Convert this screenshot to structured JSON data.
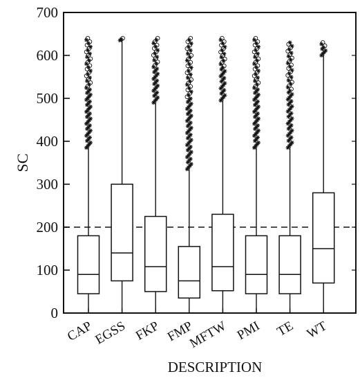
{
  "chart_data": {
    "type": "box",
    "title": "",
    "xlabel": "DESCRIPTION",
    "ylabel": "SC",
    "ylim": [
      0,
      700
    ],
    "yticks": [
      0,
      100,
      200,
      300,
      400,
      500,
      600,
      700
    ],
    "categories": [
      "CAP",
      "EGSS",
      "FKP",
      "FMP",
      "MFTW",
      "PMI",
      "TE",
      "WT"
    ],
    "reference_line": {
      "y": 200,
      "style": "dashed"
    },
    "grid": false,
    "boxes": [
      {
        "category": "CAP",
        "whisker_low": 0,
        "q1": 45,
        "median": 90,
        "q3": 180,
        "whisker_high": 385,
        "outliers_from": 385,
        "outliers_to": 640
      },
      {
        "category": "EGSS",
        "whisker_low": 0,
        "q1": 75,
        "median": 140,
        "q3": 300,
        "whisker_high": 635,
        "outliers_from": 635,
        "outliers_to": 640
      },
      {
        "category": "FKP",
        "whisker_low": 0,
        "q1": 50,
        "median": 108,
        "q3": 225,
        "whisker_high": 490,
        "outliers_from": 490,
        "outliers_to": 640
      },
      {
        "category": "FMP",
        "whisker_low": 0,
        "q1": 35,
        "median": 75,
        "q3": 155,
        "whisker_high": 335,
        "outliers_from": 335,
        "outliers_to": 640
      },
      {
        "category": "MFTW",
        "whisker_low": 0,
        "q1": 52,
        "median": 108,
        "q3": 230,
        "whisker_high": 495,
        "outliers_from": 495,
        "outliers_to": 640
      },
      {
        "category": "PMI",
        "whisker_low": 0,
        "q1": 45,
        "median": 90,
        "q3": 180,
        "whisker_high": 385,
        "outliers_from": 385,
        "outliers_to": 640
      },
      {
        "category": "TE",
        "whisker_low": 0,
        "q1": 45,
        "median": 90,
        "q3": 180,
        "whisker_high": 385,
        "outliers_from": 385,
        "outliers_to": 630
      },
      {
        "category": "WT",
        "whisker_low": 0,
        "q1": 70,
        "median": 150,
        "q3": 280,
        "whisker_high": 600,
        "outliers_from": 600,
        "outliers_to": 630
      }
    ]
  }
}
